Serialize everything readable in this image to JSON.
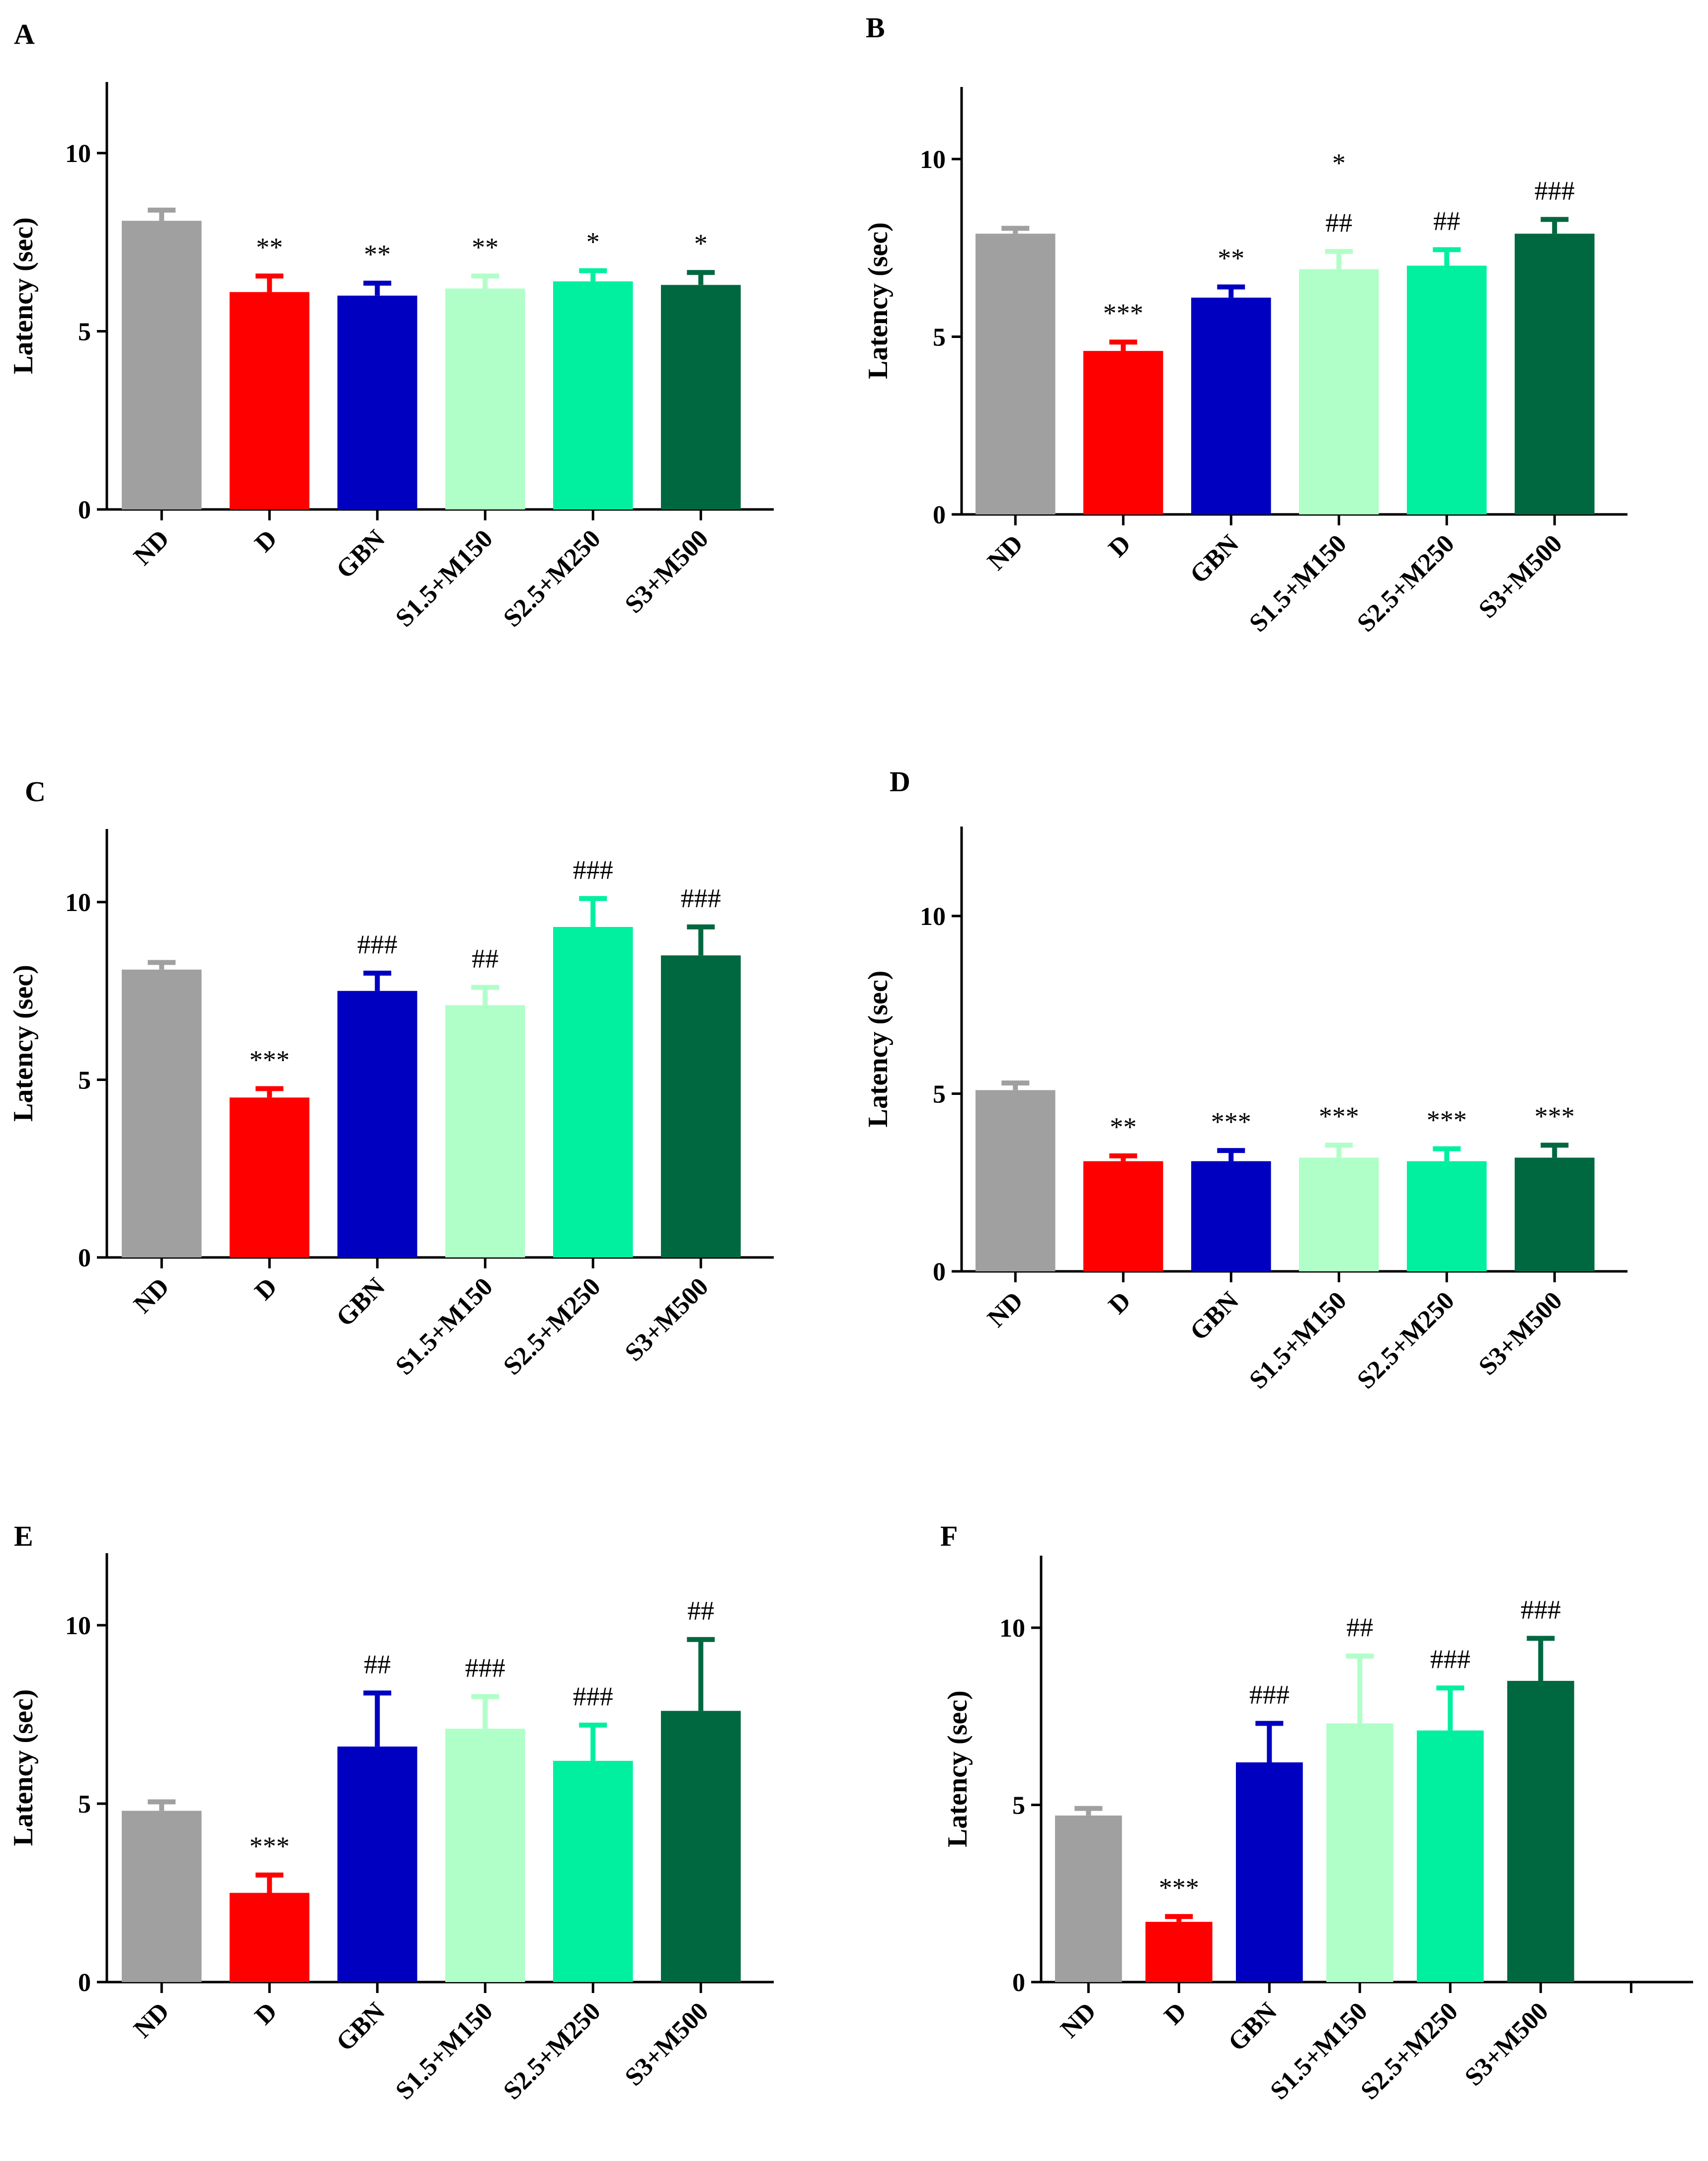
{
  "chart_data": [
    {
      "panel": "A",
      "type": "bar",
      "ylabel": "Latency (sec)",
      "ylim": [
        0,
        12
      ],
      "yticks": [
        0,
        5,
        10
      ],
      "categories": [
        "ND",
        "D",
        "GBN",
        "S1.5+M150",
        "S2.5+M250",
        "S3+M500"
      ],
      "values": [
        8.1,
        6.1,
        6.0,
        6.2,
        6.4,
        6.3
      ],
      "errors": [
        0.3,
        0.45,
        0.35,
        0.35,
        0.3,
        0.35
      ],
      "significance": [
        [
          "",
          ""
        ],
        [
          "**",
          ""
        ],
        [
          "**",
          ""
        ],
        [
          "**",
          ""
        ],
        [
          "*",
          ""
        ],
        [
          "*",
          ""
        ]
      ]
    },
    {
      "panel": "B",
      "type": "bar",
      "ylabel": "Latency (sec)",
      "ylim": [
        0,
        12
      ],
      "yticks": [
        0,
        5,
        10
      ],
      "categories": [
        "ND",
        "D",
        "GBN",
        "S1.5+M150",
        "S2.5+M250",
        "S3+M500"
      ],
      "values": [
        7.9,
        4.6,
        6.1,
        6.9,
        7.0,
        7.9
      ],
      "errors": [
        0.15,
        0.25,
        0.3,
        0.5,
        0.45,
        0.4
      ],
      "significance": [
        [
          "",
          ""
        ],
        [
          "***",
          ""
        ],
        [
          "**",
          ""
        ],
        [
          "*",
          "##"
        ],
        [
          "",
          "##"
        ],
        [
          "",
          "###"
        ]
      ]
    },
    {
      "panel": "C",
      "type": "bar",
      "ylabel": "Latency (sec)",
      "ylim": [
        0,
        12
      ],
      "yticks": [
        0,
        5,
        10
      ],
      "categories": [
        "ND",
        "D",
        "GBN",
        "S1.5+M150",
        "S2.5+M250",
        "S3+M500"
      ],
      "values": [
        8.1,
        4.5,
        7.5,
        7.1,
        9.3,
        8.5
      ],
      "errors": [
        0.2,
        0.25,
        0.5,
        0.5,
        0.8,
        0.8
      ],
      "significance": [
        [
          "",
          ""
        ],
        [
          "***",
          ""
        ],
        [
          "",
          "###"
        ],
        [
          "",
          "##"
        ],
        [
          "",
          "###"
        ],
        [
          "",
          "###"
        ]
      ]
    },
    {
      "panel": "D",
      "type": "bar",
      "ylabel": "Latency (sec)",
      "ylim": [
        0,
        12
      ],
      "yticks": [
        0,
        5,
        10
      ],
      "categories": [
        "ND",
        "D",
        "GBN",
        "S1.5+M150",
        "S2.5+M250",
        "S3+M500"
      ],
      "values": [
        5.1,
        3.1,
        3.1,
        3.2,
        3.1,
        3.2
      ],
      "errors": [
        0.2,
        0.15,
        0.3,
        0.35,
        0.35,
        0.35
      ],
      "significance": [
        [
          "",
          ""
        ],
        [
          "**",
          ""
        ],
        [
          "***",
          ""
        ],
        [
          "***",
          ""
        ],
        [
          "***",
          ""
        ],
        [
          "***",
          ""
        ]
      ]
    },
    {
      "panel": "E",
      "type": "bar",
      "ylabel": "Latency (sec)",
      "ylim": [
        0,
        12
      ],
      "yticks": [
        0,
        5,
        10
      ],
      "categories": [
        "ND",
        "D",
        "GBN",
        "S1.5+M150",
        "S2.5+M250",
        "S3+M500"
      ],
      "values": [
        4.8,
        2.5,
        6.6,
        7.1,
        6.2,
        7.6
      ],
      "errors": [
        0.25,
        0.5,
        1.5,
        0.9,
        1.0,
        2.0
      ],
      "significance": [
        [
          "",
          ""
        ],
        [
          "***",
          ""
        ],
        [
          "",
          "##"
        ],
        [
          "",
          "###"
        ],
        [
          "",
          "###"
        ],
        [
          "",
          "##"
        ]
      ]
    },
    {
      "panel": "F",
      "type": "bar",
      "ylabel": "Latency (sec)",
      "ylim": [
        0,
        12
      ],
      "yticks": [
        0,
        5,
        10
      ],
      "categories": [
        "ND",
        "D",
        "GBN",
        "S1.5+M150",
        "S2.5+M250",
        "S3+M500"
      ],
      "values": [
        4.7,
        1.7,
        6.2,
        7.3,
        7.1,
        8.5
      ],
      "errors": [
        0.2,
        0.15,
        1.1,
        1.9,
        1.2,
        1.2
      ],
      "significance": [
        [
          "",
          ""
        ],
        [
          "***",
          ""
        ],
        [
          "",
          "###"
        ],
        [
          "",
          "##"
        ],
        [
          "",
          "###"
        ],
        [
          "",
          "###"
        ]
      ]
    }
  ],
  "colors": {
    "ND": "#a0a0a0",
    "D": "#ff0000",
    "GBN": "#0000c0",
    "S1.5+M150": "#b0ffc8",
    "S2.5+M250": "#00f0a0",
    "S3+M500": "#006840"
  }
}
